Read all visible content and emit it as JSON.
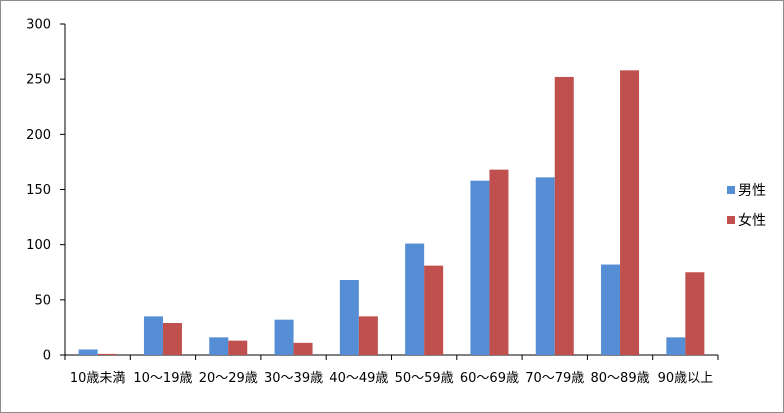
{
  "chart_data": {
    "type": "bar",
    "title": "",
    "xlabel": "",
    "ylabel": "",
    "ylim": [
      0,
      300
    ],
    "yticks": [
      0,
      50,
      100,
      150,
      200,
      250,
      300
    ],
    "grid": false,
    "legend_position": "right",
    "categories": [
      "10歳未満",
      "10～19歳",
      "20～29歳",
      "30～39歳",
      "40～49歳",
      "50～59歳",
      "60～69歳",
      "70～79歳",
      "80～89歳",
      "90歳以上"
    ],
    "series": [
      {
        "name": "男性",
        "color": "#558ED5",
        "values": [
          5,
          35,
          16,
          32,
          68,
          101,
          158,
          161,
          82,
          16
        ]
      },
      {
        "name": "女性",
        "color": "#C0504D",
        "values": [
          1,
          29,
          13,
          11,
          35,
          81,
          168,
          252,
          258,
          75
        ]
      }
    ]
  }
}
